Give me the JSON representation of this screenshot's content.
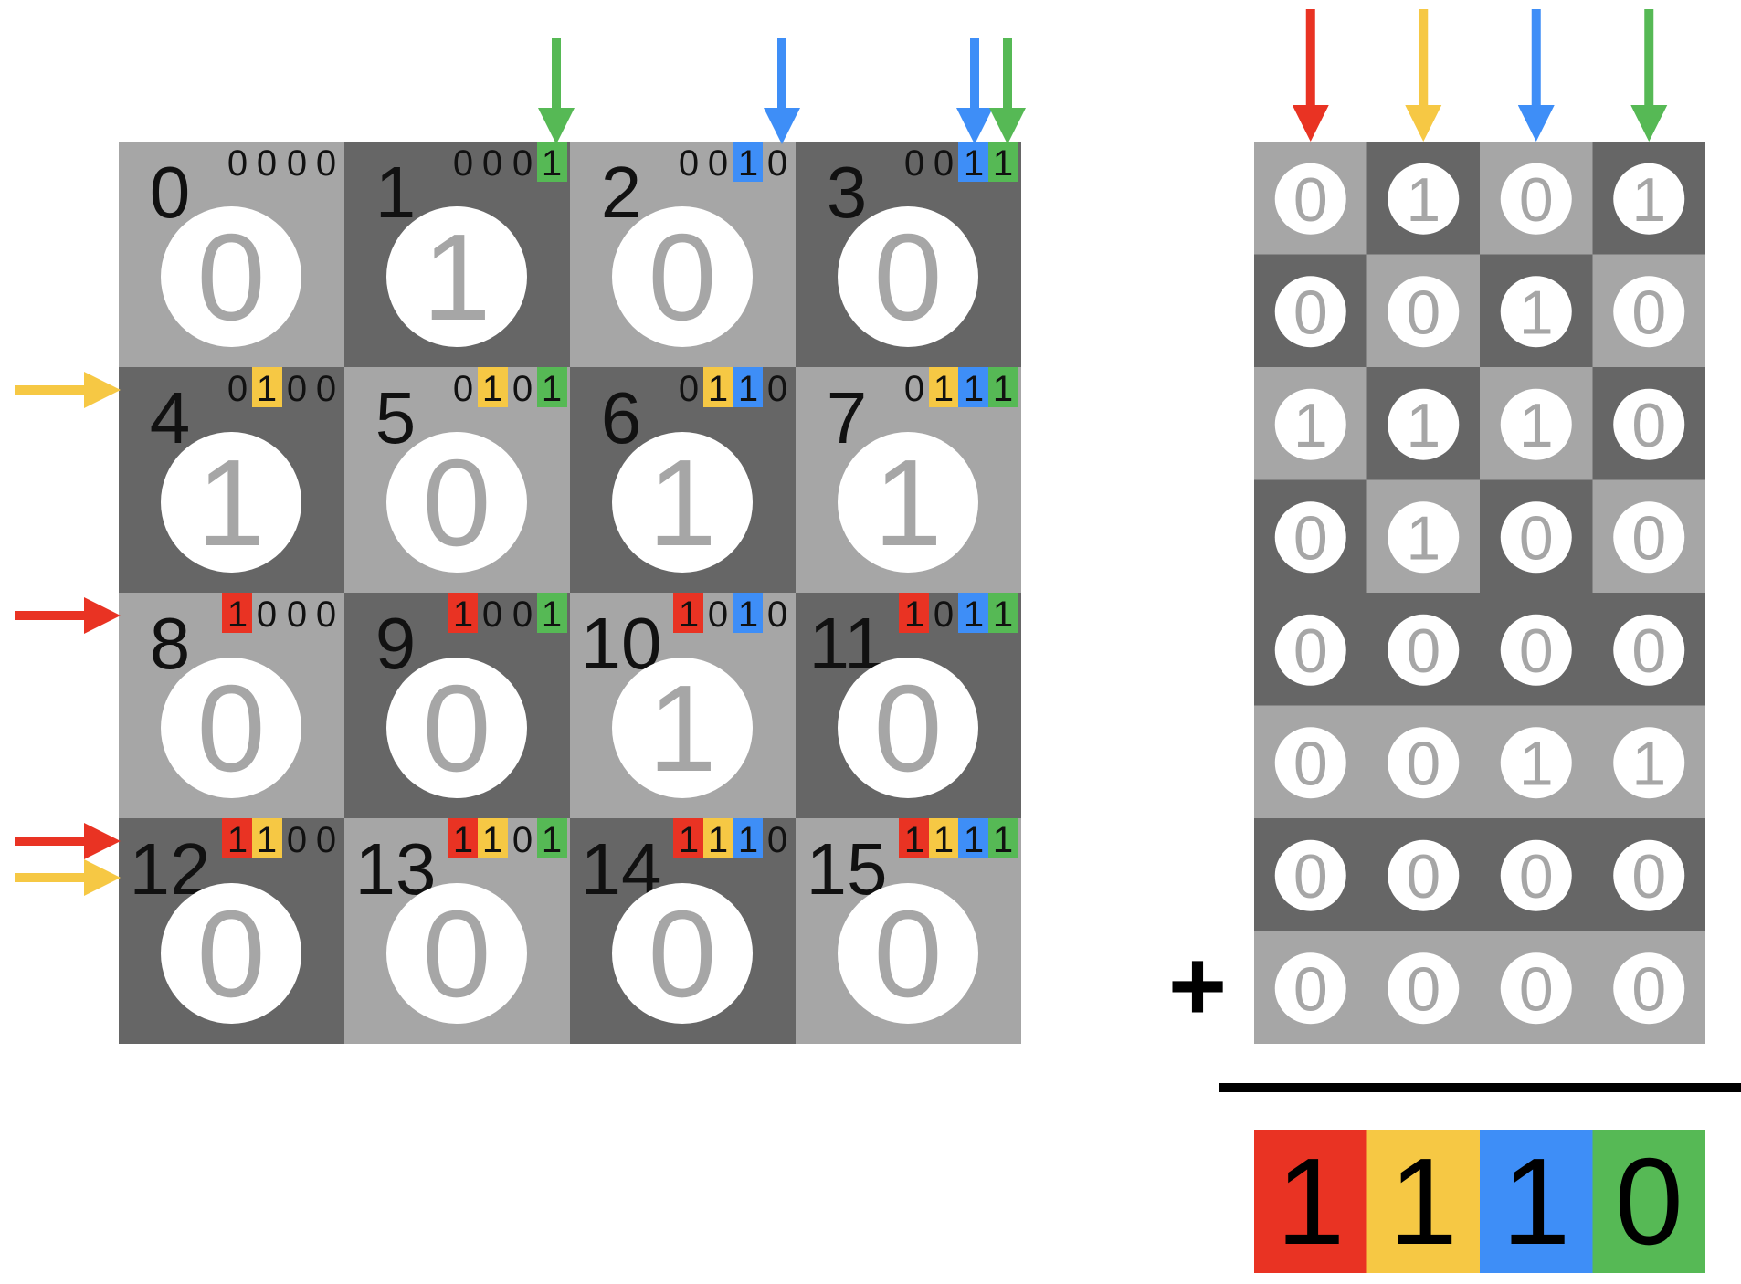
{
  "colors": {
    "light_cell": "#a6a6a6",
    "dark_cell": "#666666",
    "circle": "#ffffff",
    "digit_in_circle": "#a6a6a6",
    "index_text": "#111111",
    "red": "#e93323",
    "yellow": "#f6c844",
    "blue": "#3e8ef7",
    "green": "#56b955"
  },
  "grid": {
    "indices": [
      "0",
      "1",
      "2",
      "3",
      "4",
      "5",
      "6",
      "7",
      "8",
      "9",
      "10",
      "11",
      "12",
      "13",
      "14",
      "15"
    ],
    "values": [
      "0",
      "1",
      "0",
      "0",
      "1",
      "0",
      "1",
      "1",
      "0",
      "0",
      "1",
      "0",
      "0",
      "0",
      "0",
      "0"
    ],
    "shades": [
      "light",
      "dark",
      "light",
      "dark",
      "dark",
      "light",
      "dark",
      "light",
      "light",
      "dark",
      "light",
      "dark",
      "dark",
      "light",
      "dark",
      "light"
    ],
    "bits": [
      [
        "0",
        "0",
        "0",
        "0"
      ],
      [
        "0",
        "0",
        "0",
        "1"
      ],
      [
        "0",
        "0",
        "1",
        "0"
      ],
      [
        "0",
        "0",
        "1",
        "1"
      ],
      [
        "0",
        "1",
        "0",
        "0"
      ],
      [
        "0",
        "1",
        "0",
        "1"
      ],
      [
        "0",
        "1",
        "1",
        "0"
      ],
      [
        "0",
        "1",
        "1",
        "1"
      ],
      [
        "1",
        "0",
        "0",
        "0"
      ],
      [
        "1",
        "0",
        "0",
        "1"
      ],
      [
        "1",
        "0",
        "1",
        "0"
      ],
      [
        "1",
        "0",
        "1",
        "1"
      ],
      [
        "1",
        "1",
        "0",
        "0"
      ],
      [
        "1",
        "1",
        "0",
        "1"
      ],
      [
        "1",
        "1",
        "1",
        "0"
      ],
      [
        "1",
        "1",
        "1",
        "1"
      ]
    ],
    "bit_colors": [
      "red",
      "yellow",
      "blue",
      "green"
    ],
    "top_arrows": [
      {
        "col": 1,
        "colors": [
          "green"
        ]
      },
      {
        "col": 2,
        "colors": [
          "blue"
        ]
      },
      {
        "col": 3,
        "colors": [
          "blue",
          "green"
        ]
      }
    ],
    "left_arrows": [
      {
        "row": 1,
        "colors": [
          "yellow"
        ]
      },
      {
        "row": 2,
        "colors": [
          "red"
        ]
      },
      {
        "row": 3,
        "colors": [
          "red",
          "yellow"
        ]
      }
    ]
  },
  "sum_table": {
    "column_arrow_colors": [
      "red",
      "yellow",
      "blue",
      "green"
    ],
    "rows": [
      {
        "values": [
          "0",
          "1",
          "0",
          "1"
        ],
        "shades": [
          "light",
          "dark",
          "light",
          "dark"
        ]
      },
      {
        "values": [
          "0",
          "0",
          "1",
          "0"
        ],
        "shades": [
          "dark",
          "light",
          "dark",
          "light"
        ]
      },
      {
        "values": [
          "1",
          "1",
          "1",
          "0"
        ],
        "shades": [
          "light",
          "dark",
          "light",
          "dark"
        ]
      },
      {
        "values": [
          "0",
          "1",
          "0",
          "0"
        ],
        "shades": [
          "dark",
          "light",
          "dark",
          "light"
        ]
      },
      {
        "values": [
          "0",
          "0",
          "0",
          "0"
        ],
        "shades": [
          "dark",
          "dark",
          "dark",
          "dark"
        ]
      },
      {
        "values": [
          "0",
          "0",
          "1",
          "1"
        ],
        "shades": [
          "light",
          "light",
          "light",
          "light"
        ]
      },
      {
        "values": [
          "0",
          "0",
          "0",
          "0"
        ],
        "shades": [
          "dark",
          "dark",
          "dark",
          "dark"
        ]
      },
      {
        "values": [
          "0",
          "0",
          "0",
          "0"
        ],
        "shades": [
          "light",
          "light",
          "light",
          "light"
        ]
      }
    ],
    "plus_sign": "+",
    "result": [
      "1",
      "1",
      "1",
      "0"
    ],
    "result_colors": [
      "red",
      "yellow",
      "blue",
      "green"
    ]
  }
}
